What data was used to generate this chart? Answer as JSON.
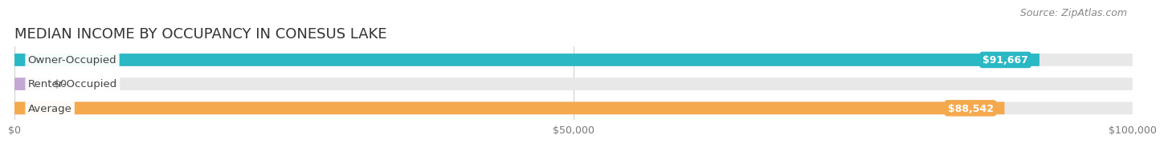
{
  "title": "MEDIAN INCOME BY OCCUPANCY IN CONESUS LAKE",
  "source": "Source: ZipAtlas.com",
  "categories": [
    "Owner-Occupied",
    "Renter-Occupied",
    "Average"
  ],
  "values": [
    91667,
    0,
    88542
  ],
  "bar_colors": [
    "#2ab8c4",
    "#c4a8d4",
    "#f5a94e"
  ],
  "bar_bg_color": "#e8e8e8",
  "value_labels": [
    "$91,667",
    "$0",
    "$88,542"
  ],
  "xlim": [
    0,
    100000
  ],
  "xticks": [
    0,
    50000,
    100000
  ],
  "xtick_labels": [
    "$0",
    "$50,000",
    "$100,000"
  ],
  "bar_height": 0.52,
  "title_fontsize": 13,
  "tick_fontsize": 9,
  "bar_label_fontsize": 9.5,
  "value_label_fontsize": 9,
  "source_fontsize": 9
}
